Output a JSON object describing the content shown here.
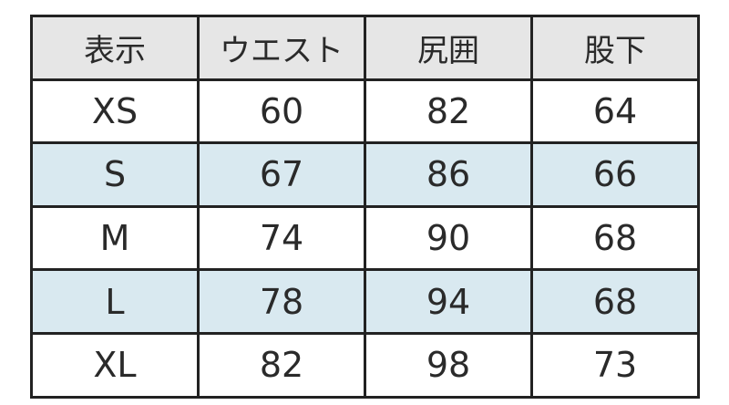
{
  "headers": [
    "表示",
    "ウエスト",
    "尻囲",
    "股下"
  ],
  "rows": [
    [
      "XS",
      "60",
      "82",
      "64"
    ],
    [
      "S",
      "67",
      "86",
      "66"
    ],
    [
      "M",
      "74",
      "90",
      "68"
    ],
    [
      "L",
      "78",
      "94",
      "68"
    ],
    [
      "XL",
      "82",
      "98",
      "73"
    ]
  ],
  "colors": {
    "header_bg": "#e6e6e6",
    "alt_row_bg": "#d9e9f0",
    "border": "#222222"
  }
}
